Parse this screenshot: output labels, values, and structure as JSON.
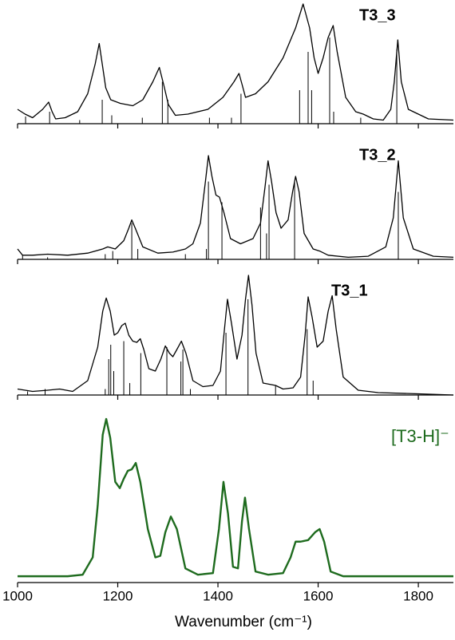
{
  "chart_data": [
    {
      "type": "line",
      "title": "T3_3",
      "color": "#000000",
      "xlim": [
        1000,
        1870
      ],
      "ylim": [
        0,
        1
      ],
      "xticks": [
        1000,
        1200,
        1400,
        1600,
        1800
      ],
      "show_xtick_labels": false,
      "x": [
        1000,
        1015,
        1030,
        1050,
        1062,
        1069,
        1076,
        1095,
        1120,
        1140,
        1155,
        1163,
        1169,
        1176,
        1186,
        1205,
        1230,
        1250,
        1270,
        1283,
        1292,
        1301,
        1315,
        1340,
        1380,
        1410,
        1432,
        1442,
        1448,
        1455,
        1475,
        1500,
        1530,
        1555,
        1570,
        1583,
        1592,
        1600,
        1610,
        1620,
        1630,
        1638,
        1655,
        1675,
        1690,
        1710,
        1730,
        1745,
        1752,
        1759,
        1766,
        1780,
        1820,
        1870
      ],
      "values": [
        0.12,
        0.08,
        0.05,
        0.12,
        0.18,
        0.1,
        0.04,
        0.05,
        0.1,
        0.25,
        0.5,
        0.67,
        0.5,
        0.3,
        0.2,
        0.17,
        0.15,
        0.2,
        0.35,
        0.47,
        0.32,
        0.16,
        0.07,
        0.08,
        0.12,
        0.22,
        0.35,
        0.42,
        0.33,
        0.22,
        0.25,
        0.35,
        0.55,
        0.8,
        1.0,
        0.8,
        0.55,
        0.42,
        0.55,
        0.72,
        0.82,
        0.6,
        0.22,
        0.1,
        0.08,
        0.04,
        0.03,
        0.12,
        0.35,
        0.7,
        0.35,
        0.12,
        0.04,
        0.03
      ],
      "stick_x": [
        1016,
        1064,
        1124,
        1169,
        1188,
        1249,
        1289,
        1300,
        1383,
        1427,
        1446,
        1563,
        1580,
        1587,
        1623,
        1631,
        1685,
        1757
      ],
      "stick_values": [
        0.06,
        0.1,
        0.03,
        0.2,
        0.07,
        0.05,
        0.35,
        0.2,
        0.05,
        0.05,
        0.25,
        0.28,
        0.6,
        0.28,
        0.72,
        0.1,
        0.05,
        0.62
      ]
    },
    {
      "type": "line",
      "title": "T3_2",
      "color": "#000000",
      "xlim": [
        1000,
        1870
      ],
      "ylim": [
        0,
        1
      ],
      "xticks": [
        1000,
        1200,
        1400,
        1600,
        1800
      ],
      "show_xtick_labels": false,
      "x": [
        1000,
        1010,
        1030,
        1060,
        1100,
        1140,
        1170,
        1180,
        1195,
        1212,
        1222,
        1228,
        1235,
        1250,
        1280,
        1310,
        1335,
        1350,
        1365,
        1375,
        1381,
        1388,
        1396,
        1403,
        1412,
        1425,
        1445,
        1470,
        1485,
        1494,
        1500,
        1507,
        1516,
        1526,
        1540,
        1549,
        1555,
        1562,
        1572,
        1590,
        1603,
        1620,
        1660,
        1700,
        1735,
        1750,
        1760,
        1770,
        1790,
        1830,
        1870
      ],
      "values": [
        0.1,
        0.04,
        0.04,
        0.05,
        0.04,
        0.06,
        0.1,
        0.12,
        0.1,
        0.18,
        0.3,
        0.38,
        0.3,
        0.12,
        0.06,
        0.07,
        0.1,
        0.15,
        0.35,
        0.75,
        1.0,
        0.8,
        0.62,
        0.6,
        0.45,
        0.2,
        0.15,
        0.2,
        0.35,
        0.7,
        0.95,
        0.75,
        0.45,
        0.3,
        0.38,
        0.65,
        0.8,
        0.65,
        0.25,
        0.1,
        0.08,
        0.04,
        0.02,
        0.03,
        0.12,
        0.4,
        0.95,
        0.4,
        0.1,
        0.03,
        0.02
      ],
      "stick_x": [
        1010,
        1060,
        1175,
        1190,
        1228,
        1240,
        1335,
        1377,
        1381,
        1408,
        1485,
        1497,
        1502,
        1553,
        1760
      ],
      "stick_values": [
        0.04,
        0.02,
        0.05,
        0.08,
        0.35,
        0.1,
        0.05,
        0.1,
        0.75,
        0.55,
        0.5,
        0.25,
        0.72,
        0.75,
        0.65
      ]
    },
    {
      "type": "line",
      "title": "T3_1",
      "color": "#000000",
      "xlim": [
        1000,
        1870
      ],
      "ylim": [
        0,
        1
      ],
      "xticks": [
        1000,
        1200,
        1400,
        1600,
        1800
      ],
      "show_xtick_labels": false,
      "x": [
        1000,
        1030,
        1060,
        1084,
        1110,
        1140,
        1160,
        1170,
        1177,
        1185,
        1193,
        1200,
        1208,
        1215,
        1222,
        1230,
        1238,
        1245,
        1252,
        1262,
        1275,
        1286,
        1295,
        1303,
        1310,
        1318,
        1327,
        1336,
        1350,
        1370,
        1390,
        1405,
        1413,
        1419,
        1427,
        1438,
        1448,
        1455,
        1461,
        1468,
        1476,
        1490,
        1515,
        1530,
        1550,
        1565,
        1574,
        1580,
        1588,
        1598,
        1610,
        1620,
        1628,
        1636,
        1650,
        1680,
        1720,
        1800,
        1870
      ],
      "values": [
        0.05,
        0.03,
        0.04,
        0.05,
        0.03,
        0.12,
        0.4,
        0.7,
        0.81,
        0.7,
        0.5,
        0.52,
        0.58,
        0.6,
        0.5,
        0.45,
        0.44,
        0.47,
        0.38,
        0.22,
        0.2,
        0.3,
        0.41,
        0.35,
        0.32,
        0.38,
        0.45,
        0.35,
        0.12,
        0.07,
        0.08,
        0.2,
        0.55,
        0.8,
        0.6,
        0.3,
        0.5,
        0.8,
        1.0,
        0.75,
        0.35,
        0.1,
        0.08,
        0.05,
        0.06,
        0.15,
        0.5,
        0.82,
        0.65,
        0.4,
        0.45,
        0.7,
        0.83,
        0.55,
        0.15,
        0.04,
        0.02,
        0.01,
        0.0
      ],
      "stick_x": [
        1020,
        1055,
        1175,
        1182,
        1186,
        1192,
        1212,
        1224,
        1246,
        1298,
        1326,
        1330,
        1345,
        1416,
        1460,
        1515,
        1578,
        1590
      ],
      "stick_values": [
        0.03,
        0.05,
        0.05,
        0.3,
        0.42,
        0.2,
        0.45,
        0.1,
        0.35,
        0.4,
        0.28,
        0.38,
        0.05,
        0.52,
        0.8,
        0.08,
        0.55,
        0.12
      ]
    },
    {
      "type": "line",
      "title": "[T3-H]⁻",
      "color": "#1e6b1e",
      "xlim": [
        1000,
        1870
      ],
      "ylim": [
        -0.04,
        1
      ],
      "xticks": [
        1000,
        1200,
        1400,
        1600,
        1800
      ],
      "show_xtick_labels": true,
      "xlabel": "Wavenumber (cm⁻¹)",
      "x": [
        1000,
        1100,
        1130,
        1150,
        1160,
        1170,
        1177,
        1185,
        1195,
        1204,
        1212,
        1220,
        1228,
        1236,
        1245,
        1260,
        1275,
        1285,
        1295,
        1306,
        1318,
        1335,
        1360,
        1390,
        1402,
        1411,
        1420,
        1430,
        1440,
        1448,
        1454,
        1462,
        1475,
        1500,
        1530,
        1545,
        1555,
        1565,
        1580,
        1594,
        1603,
        1612,
        1625,
        1650,
        1700,
        1870
      ],
      "values": [
        0,
        0,
        0.01,
        0.12,
        0.45,
        0.9,
        1.0,
        0.88,
        0.6,
        0.56,
        0.62,
        0.67,
        0.68,
        0.72,
        0.6,
        0.3,
        0.12,
        0.13,
        0.28,
        0.38,
        0.3,
        0.05,
        0.01,
        0.02,
        0.3,
        0.6,
        0.4,
        0.06,
        0.05,
        0.35,
        0.5,
        0.3,
        0.03,
        0.01,
        0.02,
        0.12,
        0.22,
        0.22,
        0.23,
        0.28,
        0.3,
        0.22,
        0.03,
        0,
        0,
        0
      ]
    }
  ]
}
